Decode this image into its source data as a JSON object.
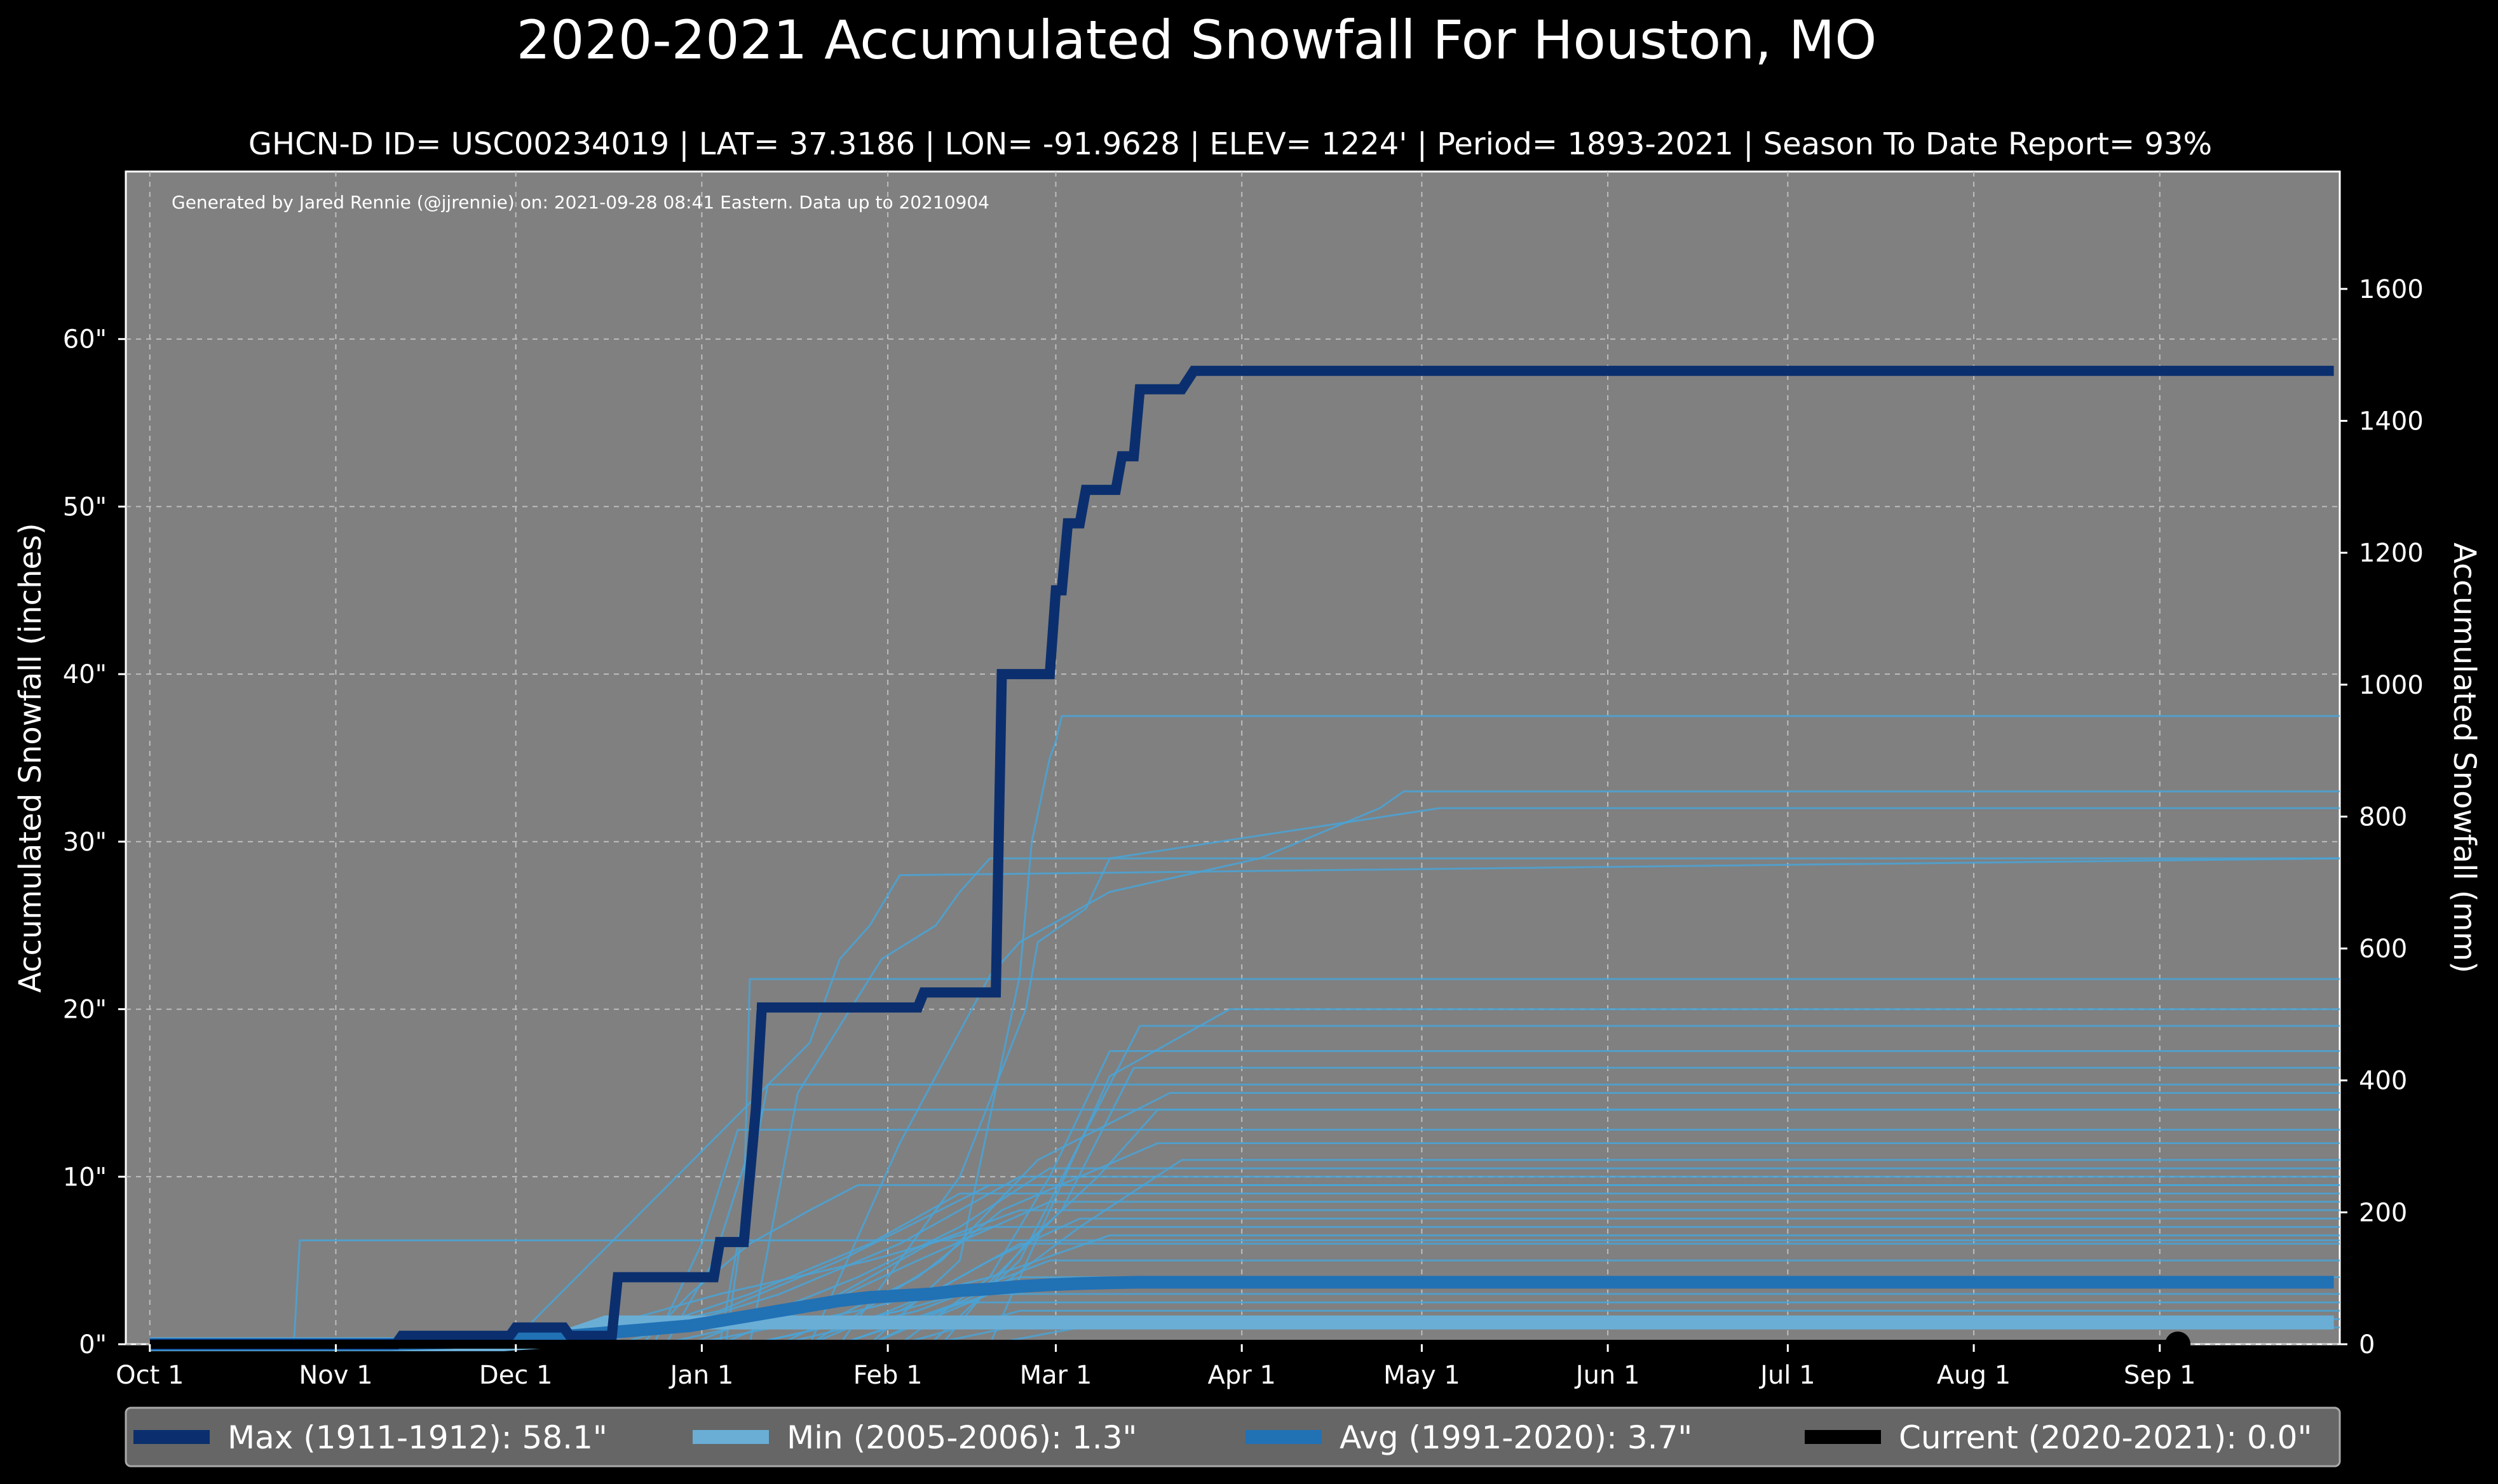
{
  "title": "2020-2021 Accumulated Snowfall For Houston, MO",
  "subtitle": "GHCN-D ID= USC00234019 | LAT= 37.3186 | LON= -91.9628 | ELEV= 1224' | Period= 1893-2021 | Season To Date Report= 93%",
  "credit": "Generated by Jared Rennie (@jjrennie) on: 2021-09-28 08:41 Eastern. Data up to 20210904",
  "colors": {
    "background": "#000000",
    "plot_bg": "#808080",
    "max": "#0b2f6e",
    "min": "#6aaed6",
    "avg": "#2171b5",
    "current": "#000000",
    "history": "#4aa3d6"
  },
  "chart_data": {
    "type": "line",
    "x_unit": "days since Oct 1",
    "xlim": [
      -4,
      365
    ],
    "ylim": [
      0,
      70
    ],
    "ylim_mm": [
      0,
      1778
    ],
    "xlabel": "",
    "ylabel": "Accumulated Snowfall (inches)",
    "ylabel_right": "Accumulated Snowfall (mm)",
    "x_ticks": [
      {
        "label": "Oct 1",
        "day": 0
      },
      {
        "label": "Nov 1",
        "day": 31
      },
      {
        "label": "Dec 1",
        "day": 61
      },
      {
        "label": "Jan 1",
        "day": 92
      },
      {
        "label": "Feb 1",
        "day": 123
      },
      {
        "label": "Mar 1",
        "day": 151
      },
      {
        "label": "Apr 1",
        "day": 182
      },
      {
        "label": "May 1",
        "day": 212
      },
      {
        "label": "Jun 1",
        "day": 243
      },
      {
        "label": "Jul 1",
        "day": 273
      },
      {
        "label": "Aug 1",
        "day": 304
      },
      {
        "label": "Sep 1",
        "day": 335
      }
    ],
    "y_ticks": [
      {
        "label": "0\"",
        "value": 0
      },
      {
        "label": "10\"",
        "value": 10
      },
      {
        "label": "20\"",
        "value": 20
      },
      {
        "label": "30\"",
        "value": 30
      },
      {
        "label": "40\"",
        "value": 40
      },
      {
        "label": "50\"",
        "value": 50
      },
      {
        "label": "60\"",
        "value": 60
      }
    ],
    "y_ticks_right": [
      {
        "label": "0",
        "value": 0
      },
      {
        "label": "200",
        "value": 200
      },
      {
        "label": "400",
        "value": 400
      },
      {
        "label": "600",
        "value": 600
      },
      {
        "label": "800",
        "value": 800
      },
      {
        "label": "1000",
        "value": 1000
      },
      {
        "label": "1200",
        "value": 1200
      },
      {
        "label": "1400",
        "value": 1400
      },
      {
        "label": "1600",
        "value": 1600
      }
    ],
    "history_series": [
      {
        "name": "season-a",
        "x": [
          0,
          24,
          25,
          365
        ],
        "y": [
          0,
          0,
          6.2,
          6.2
        ]
      },
      {
        "name": "season-b",
        "x": [
          0,
          82,
          90,
          100,
          110,
          118,
          365
        ],
        "y": [
          0,
          0,
          3,
          6,
          8,
          9.5,
          9.5
        ]
      },
      {
        "name": "season-c",
        "x": [
          0,
          84,
          92,
          98,
          365
        ],
        "y": [
          0,
          0,
          6,
          12.8,
          12.8
        ]
      },
      {
        "name": "season-d",
        "x": [
          0,
          86,
          94,
          102,
          365
        ],
        "y": [
          0,
          0,
          5,
          14,
          14
        ]
      },
      {
        "name": "season-e",
        "x": [
          0,
          95,
          99,
          100,
          365
        ],
        "y": [
          0,
          0,
          8,
          21.8,
          21.8
        ]
      },
      {
        "name": "season-f",
        "x": [
          0,
          96,
          100,
          103,
          365
        ],
        "y": [
          0,
          0,
          10,
          15.5,
          15.5
        ]
      },
      {
        "name": "season-g",
        "x": [
          0,
          60,
          110,
          115,
          120,
          125,
          365
        ],
        "y": [
          0,
          0,
          18,
          23,
          25,
          28,
          29
        ]
      },
      {
        "name": "season-h",
        "x": [
          0,
          100,
          108,
          122,
          131,
          135,
          140,
          365
        ],
        "y": [
          0,
          0,
          15,
          23,
          25,
          27,
          29,
          29
        ]
      },
      {
        "name": "season-i",
        "x": [
          0,
          120,
          135,
          145,
          147,
          150,
          151,
          152,
          365
        ],
        "y": [
          0,
          0,
          5,
          22,
          30,
          35,
          36,
          37.5,
          37.5
        ]
      },
      {
        "name": "season-j",
        "x": [
          0,
          110,
          125,
          140,
          145,
          160,
          185,
          205,
          209,
          365
        ],
        "y": [
          0,
          0,
          12,
          22,
          24,
          27,
          29,
          32,
          33,
          33
        ]
      },
      {
        "name": "season-k",
        "x": [
          0,
          115,
          135,
          146,
          148,
          156,
          160,
          215,
          365
        ],
        "y": [
          0,
          0,
          10,
          20,
          24,
          26,
          29,
          32,
          32
        ]
      },
      {
        "name": "season-l",
        "x": [
          0,
          140,
          150,
          160,
          170,
          180,
          365
        ],
        "y": [
          0,
          0,
          8,
          16,
          18,
          20,
          20
        ]
      },
      {
        "name": "season-m",
        "x": [
          0,
          130,
          145,
          155,
          165,
          365
        ],
        "y": [
          0,
          0,
          5,
          12,
          19,
          19
        ]
      },
      {
        "name": "season-n",
        "x": [
          0,
          125,
          140,
          150,
          160,
          365
        ],
        "y": [
          0,
          0,
          4,
          10,
          17.5,
          17.5
        ]
      },
      {
        "name": "season-o",
        "x": [
          0,
          120,
          138,
          152,
          164,
          365
        ],
        "y": [
          0,
          0,
          3,
          8,
          16.5,
          16.5
        ]
      },
      {
        "name": "season-p",
        "x": [
          0,
          110,
          132,
          148,
          170,
          365
        ],
        "y": [
          0,
          0,
          5,
          11,
          15,
          15
        ]
      },
      {
        "name": "season-q",
        "x": [
          0,
          132,
          146,
          158,
          168,
          365
        ],
        "y": [
          0,
          0,
          6,
          10,
          14,
          14
        ]
      },
      {
        "name": "season-r",
        "x": [
          0,
          105,
          128,
          142,
          168,
          365
        ],
        "y": [
          0,
          0,
          4,
          8,
          12,
          12
        ]
      },
      {
        "name": "season-s",
        "x": [
          0,
          115,
          140,
          155,
          172,
          365
        ],
        "y": [
          0,
          0,
          3,
          7,
          11,
          11
        ]
      },
      {
        "name": "season-t",
        "x": [
          0,
          90,
          118,
          135,
          150,
          365
        ],
        "y": [
          0,
          0,
          4,
          7,
          10.5,
          10.5
        ]
      },
      {
        "name": "season-u",
        "x": [
          0,
          78,
          105,
          125,
          145,
          365
        ],
        "y": [
          0,
          0,
          3,
          6,
          10,
          10
        ]
      },
      {
        "name": "season-v",
        "x": [
          0,
          70,
          95,
          115,
          140,
          365
        ],
        "y": [
          0,
          0,
          2,
          5,
          9.5,
          9.5
        ]
      },
      {
        "name": "season-w",
        "x": [
          0,
          75,
          100,
          120,
          135,
          365
        ],
        "y": [
          0,
          0,
          3,
          6,
          9,
          9
        ]
      },
      {
        "name": "season-x",
        "x": [
          0,
          85,
          110,
          128,
          150,
          365
        ],
        "y": [
          0,
          0,
          2,
          5,
          8.5,
          8.5
        ]
      },
      {
        "name": "season-y",
        "x": [
          0,
          95,
          115,
          130,
          145,
          365
        ],
        "y": [
          0,
          0,
          3,
          6,
          8,
          8
        ]
      },
      {
        "name": "season-z",
        "x": [
          0,
          100,
          125,
          140,
          155,
          365
        ],
        "y": [
          0,
          0,
          2,
          5,
          7.5,
          7.5
        ]
      },
      {
        "name": "season-aa",
        "x": [
          0,
          65,
          95,
          120,
          140,
          365
        ],
        "y": [
          0,
          0,
          3,
          5,
          7,
          7
        ]
      },
      {
        "name": "season-ab",
        "x": [
          0,
          90,
          118,
          140,
          160,
          365
        ],
        "y": [
          0,
          0,
          2,
          4,
          6.5,
          6.5
        ]
      },
      {
        "name": "season-ac",
        "x": [
          0,
          110,
          130,
          145,
          365
        ],
        "y": [
          0,
          0,
          3,
          6,
          6
        ]
      },
      {
        "name": "season-ad",
        "x": [
          0,
          105,
          128,
          150,
          365
        ],
        "y": [
          0,
          0,
          2,
          5,
          5
        ]
      },
      {
        "name": "season-ae",
        "x": [
          0,
          100,
          125,
          145,
          365
        ],
        "y": [
          0,
          0,
          2,
          4,
          4
        ]
      },
      {
        "name": "season-af",
        "x": [
          0,
          120,
          140,
          365
        ],
        "y": [
          0,
          0,
          3,
          3
        ]
      },
      {
        "name": "season-ag",
        "x": [
          0,
          115,
          135,
          365
        ],
        "y": [
          0,
          0,
          2.5,
          2.5
        ]
      },
      {
        "name": "season-ah",
        "x": [
          0,
          125,
          145,
          365
        ],
        "y": [
          0,
          0,
          2,
          2
        ]
      },
      {
        "name": "season-ai",
        "x": [
          0,
          130,
          150,
          365
        ],
        "y": [
          0,
          0,
          1.5,
          1.5
        ]
      },
      {
        "name": "season-aj",
        "x": [
          0,
          140,
          155,
          365
        ],
        "y": [
          0,
          0,
          1,
          1
        ]
      }
    ],
    "series": [
      {
        "name": "Max (1911-1912)",
        "color": "#0b2f6e",
        "x": [
          0,
          41,
          42,
          60,
          61,
          69,
          70,
          77,
          78,
          94,
          95,
          99,
          100,
          101,
          102,
          108,
          109,
          128,
          129,
          138,
          139,
          141,
          142,
          144,
          145,
          150,
          151,
          152,
          153,
          155,
          156,
          161,
          162,
          164,
          165,
          172,
          174,
          176,
          364
        ],
        "y": [
          0,
          0,
          0.5,
          0.5,
          1,
          1,
          0.5,
          0.5,
          4,
          4,
          6.1,
          6.1,
          10,
          14,
          20.1,
          20.1,
          20.1,
          20.1,
          21,
          21,
          21,
          21,
          40,
          40,
          40,
          40,
          45,
          45,
          49,
          49,
          51,
          51,
          53,
          53,
          57,
          57,
          58.1,
          58.1,
          58.1
        ]
      },
      {
        "name": "Min (2005-2006)",
        "color": "#6aaed6",
        "x": [
          0,
          59,
          67,
          72,
          76,
          364
        ],
        "y": [
          0,
          0,
          0.2,
          0.8,
          1.3,
          1.3
        ]
      },
      {
        "name": "Avg (1991-2020)",
        "color": "#2171b5",
        "x": [
          0,
          40,
          50,
          60,
          70,
          80,
          90,
          95,
          100,
          105,
          110,
          115,
          120,
          125,
          130,
          135,
          140,
          145,
          150,
          155,
          160,
          165,
          170,
          364
        ],
        "y": [
          0,
          0,
          0.1,
          0.3,
          0.5,
          0.8,
          1.1,
          1.4,
          1.7,
          2.0,
          2.3,
          2.6,
          2.8,
          2.9,
          3.0,
          3.2,
          3.3,
          3.45,
          3.55,
          3.62,
          3.67,
          3.7,
          3.7,
          3.7
        ]
      },
      {
        "name": "Current (2020-2021)",
        "color": "#000000",
        "x": [
          0,
          338
        ],
        "y": [
          0,
          0
        ]
      }
    ],
    "current_marker": {
      "day": 338,
      "value": 0
    },
    "legend": [
      {
        "label": "Max (1911-1912):   58.1\"",
        "color": "#0b2f6e"
      },
      {
        "label": "Min (2005-2006):    1.3\"",
        "color": "#6aaed6"
      },
      {
        "label": "Avg (1991-2020):    3.7\"",
        "color": "#2171b5"
      },
      {
        "label": "Current (2020-2021): 0.0\"",
        "color": "#000000"
      }
    ],
    "legend_position": "bottom",
    "grid": true
  }
}
